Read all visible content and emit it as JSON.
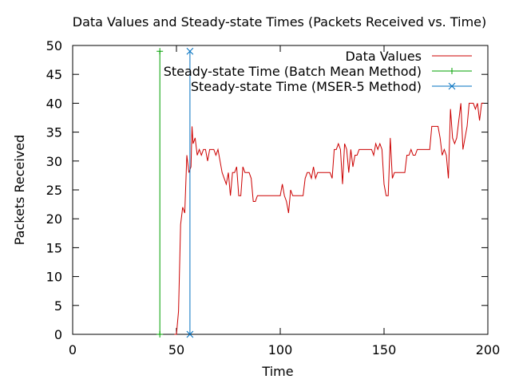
{
  "chart_data": {
    "type": "line",
    "title": "Data Values and Steady-state Times (Packets Received vs. Time)",
    "xlabel": "Time",
    "ylabel": "Packets Received",
    "xlim": [
      0,
      200
    ],
    "ylim": [
      0,
      50
    ],
    "xticks": [
      0,
      50,
      100,
      150,
      200
    ],
    "yticks": [
      0,
      5,
      10,
      15,
      20,
      25,
      30,
      35,
      40,
      45,
      50
    ],
    "grid": false,
    "legend_position": "top-right",
    "series": [
      {
        "name": "Data Values",
        "color": "#cc0000",
        "marker": "none",
        "points": [
          [
            49,
            0
          ],
          [
            50,
            0
          ],
          [
            51,
            4
          ],
          [
            52,
            19
          ],
          [
            53,
            22
          ],
          [
            54,
            21
          ],
          [
            55,
            31
          ],
          [
            56,
            28
          ],
          [
            57,
            29
          ],
          [
            57.5,
            36
          ],
          [
            58,
            33
          ],
          [
            59,
            34
          ],
          [
            60,
            31
          ],
          [
            61,
            32
          ],
          [
            62,
            31
          ],
          [
            63,
            32
          ],
          [
            64,
            32
          ],
          [
            65,
            30
          ],
          [
            66,
            32
          ],
          [
            67,
            32
          ],
          [
            68,
            32
          ],
          [
            69,
            31
          ],
          [
            70,
            32
          ],
          [
            71,
            30
          ],
          [
            72,
            28
          ],
          [
            73,
            27
          ],
          [
            74,
            26
          ],
          [
            75,
            28
          ],
          [
            76,
            24
          ],
          [
            77,
            28
          ],
          [
            78,
            28
          ],
          [
            79,
            29
          ],
          [
            80,
            24
          ],
          [
            81,
            24
          ],
          [
            82,
            29
          ],
          [
            83,
            28
          ],
          [
            84,
            28
          ],
          [
            85,
            28
          ],
          [
            86,
            27
          ],
          [
            87,
            23
          ],
          [
            88,
            23
          ],
          [
            89,
            24
          ],
          [
            90,
            24
          ],
          [
            95,
            24
          ],
          [
            100,
            24
          ],
          [
            101,
            26
          ],
          [
            102,
            24
          ],
          [
            103,
            23
          ],
          [
            104,
            21
          ],
          [
            105,
            25
          ],
          [
            106,
            24
          ],
          [
            107,
            24
          ],
          [
            108,
            24
          ],
          [
            109,
            24
          ],
          [
            110,
            24
          ],
          [
            111,
            24
          ],
          [
            112,
            27
          ],
          [
            113,
            28
          ],
          [
            114,
            28
          ],
          [
            115,
            27
          ],
          [
            116,
            29
          ],
          [
            117,
            27
          ],
          [
            118,
            28
          ],
          [
            119,
            28
          ],
          [
            120,
            28
          ],
          [
            121,
            28
          ],
          [
            122,
            28
          ],
          [
            123,
            28
          ],
          [
            124,
            28
          ],
          [
            125,
            27
          ],
          [
            126,
            32
          ],
          [
            127,
            32
          ],
          [
            128,
            33
          ],
          [
            129,
            32
          ],
          [
            130,
            26
          ],
          [
            131,
            33
          ],
          [
            132,
            32
          ],
          [
            133,
            28
          ],
          [
            134,
            32
          ],
          [
            135,
            29
          ],
          [
            136,
            31
          ],
          [
            137,
            31
          ],
          [
            138,
            32
          ],
          [
            139,
            32
          ],
          [
            140,
            32
          ],
          [
            141,
            32
          ],
          [
            142,
            32
          ],
          [
            143,
            32
          ],
          [
            144,
            32
          ],
          [
            145,
            31
          ],
          [
            146,
            33
          ],
          [
            147,
            32
          ],
          [
            148,
            33
          ],
          [
            149,
            32
          ],
          [
            150,
            26
          ],
          [
            151,
            24
          ],
          [
            152,
            24
          ],
          [
            153,
            34
          ],
          [
            154,
            27
          ],
          [
            155,
            28
          ],
          [
            156,
            28
          ],
          [
            157,
            28
          ],
          [
            158,
            28
          ],
          [
            159,
            28
          ],
          [
            160,
            28
          ],
          [
            161,
            31
          ],
          [
            162,
            31
          ],
          [
            163,
            32
          ],
          [
            164,
            31
          ],
          [
            165,
            31
          ],
          [
            166,
            32
          ],
          [
            167,
            32
          ],
          [
            168,
            32
          ],
          [
            169,
            32
          ],
          [
            170,
            32
          ],
          [
            171,
            32
          ],
          [
            172,
            32
          ],
          [
            173,
            36
          ],
          [
            174,
            36
          ],
          [
            175,
            36
          ],
          [
            176,
            36
          ],
          [
            177,
            34
          ],
          [
            178,
            31
          ],
          [
            179,
            32
          ],
          [
            180,
            31
          ],
          [
            181,
            27
          ],
          [
            182,
            39
          ],
          [
            183,
            34
          ],
          [
            184,
            33
          ],
          [
            185,
            34
          ],
          [
            186,
            37
          ],
          [
            187,
            40
          ],
          [
            188,
            32
          ],
          [
            189,
            34
          ],
          [
            190,
            36
          ],
          [
            191,
            40
          ],
          [
            192,
            40
          ],
          [
            193,
            40
          ],
          [
            194,
            39
          ],
          [
            195,
            40
          ],
          [
            196,
            37
          ],
          [
            197,
            40
          ],
          [
            198,
            40
          ]
        ]
      },
      {
        "name": "Steady-state Time (Batch Mean Method)",
        "color": "#00a000",
        "marker": "plus",
        "points": [
          [
            42,
            0
          ],
          [
            42,
            49
          ]
        ]
      },
      {
        "name": "Steady-state Time (MSER-5 Method)",
        "color": "#0070c0",
        "marker": "x",
        "points": [
          [
            56.5,
            0
          ],
          [
            56.5,
            49
          ]
        ]
      }
    ]
  }
}
